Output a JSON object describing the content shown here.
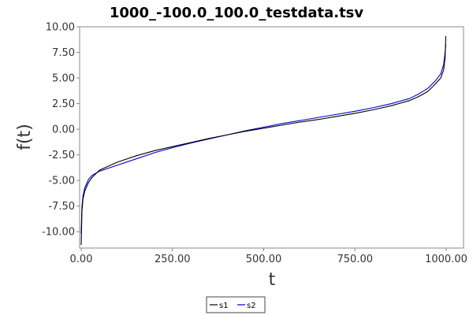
{
  "chart_data": {
    "type": "line",
    "title": "1000_-100.0_100.0_testdata.tsv",
    "xlabel": "t",
    "ylabel": "f(t)",
    "xlim": [
      0,
      1000
    ],
    "ylim": [
      -11.6,
      10.0
    ],
    "x_ticks": [
      "0.00",
      "250.00",
      "500.00",
      "750.00",
      "1000.00"
    ],
    "y_ticks": [
      "10.00",
      "7.50",
      "5.00",
      "2.50",
      "0.00",
      "-2.50",
      "-5.00",
      "-7.50",
      "-10.00"
    ],
    "grid": false,
    "legend_position": "bottom-center",
    "series": [
      {
        "name": "s1",
        "color": "#000000",
        "x": [
          0,
          2,
          5,
          10,
          20,
          30,
          50,
          75,
          100,
          150,
          200,
          250,
          300,
          350,
          400,
          450,
          500,
          550,
          600,
          650,
          700,
          750,
          800,
          850,
          900,
          925,
          950,
          970,
          985,
          993,
          997,
          999
        ],
        "y": [
          -11.3,
          -8.0,
          -6.8,
          -6.0,
          -5.2,
          -4.7,
          -4.0,
          -3.6,
          -3.2,
          -2.6,
          -2.1,
          -1.7,
          -1.3,
          -0.9,
          -0.55,
          -0.2,
          0.1,
          0.4,
          0.7,
          0.95,
          1.25,
          1.55,
          1.9,
          2.3,
          2.8,
          3.2,
          3.7,
          4.4,
          5.0,
          5.8,
          7.0,
          9.1
        ]
      },
      {
        "name": "s2",
        "color": "#0000cc",
        "x": [
          0,
          2,
          5,
          10,
          20,
          30,
          50,
          75,
          100,
          150,
          200,
          250,
          300,
          350,
          400,
          450,
          500,
          550,
          600,
          650,
          700,
          750,
          800,
          850,
          900,
          925,
          950,
          970,
          985,
          993,
          997,
          999
        ],
        "y": [
          -10.2,
          -7.6,
          -6.5,
          -5.7,
          -4.9,
          -4.5,
          -4.1,
          -3.8,
          -3.5,
          -2.9,
          -2.3,
          -1.8,
          -1.35,
          -0.95,
          -0.55,
          -0.15,
          0.2,
          0.55,
          0.85,
          1.15,
          1.45,
          1.75,
          2.1,
          2.5,
          3.0,
          3.45,
          4.0,
          4.7,
          5.4,
          6.3,
          7.5,
          8.3
        ]
      }
    ]
  }
}
